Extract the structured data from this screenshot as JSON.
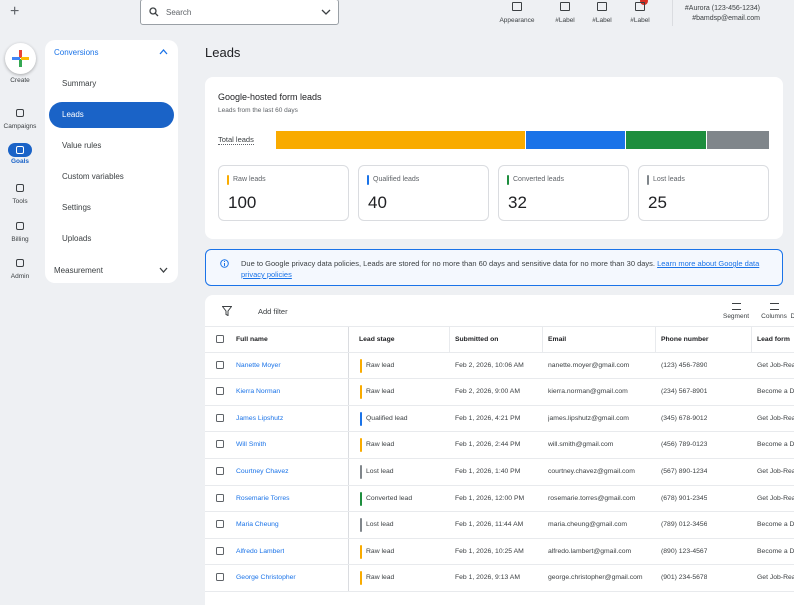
{
  "topbar": {
    "search_placeholder": "Search",
    "actions": [
      "Appearance",
      "#Label",
      "#Label",
      "#Label"
    ],
    "account_name": "#Aurora (123-456-1234)",
    "account_email": "#bamdsp@email.com"
  },
  "rail": {
    "create": "Create",
    "items": [
      "Campaigns",
      "Goals",
      "Tools",
      "Billing",
      "Admin"
    ],
    "active": 1
  },
  "subnav": {
    "section": "Conversions",
    "items": [
      "Summary",
      "Leads",
      "Value rules",
      "Custom variables",
      "Settings",
      "Uploads"
    ],
    "active": 1,
    "footer": "Measurement"
  },
  "page_title": "Leads",
  "summary": {
    "title": "Google-hosted form leads",
    "subtitle": "Leads from the last 60 days",
    "bar_label": "Total leads",
    "stats": [
      {
        "label": "Raw leads",
        "value": 100,
        "color": "#f9ab00"
      },
      {
        "label": "Qualified leads",
        "value": 40,
        "color": "#1a73e8"
      },
      {
        "label": "Converted leads",
        "value": 32,
        "color": "#1e8e3e"
      },
      {
        "label": "Lost leads",
        "value": 25,
        "color": "#80868b"
      }
    ]
  },
  "notice": {
    "text": "Due to Google privacy data policies, Leads are stored for no more than 60 days and sensitive data for no more than 30 days.",
    "link": "Learn more about Google data privacy policies"
  },
  "toolbar": {
    "filter": "Add filter",
    "actions": [
      "Segment",
      "Columns",
      "Download"
    ]
  },
  "table": {
    "columns": [
      "Full name",
      "Lead stage",
      "Submitted on",
      "Email",
      "Phone number",
      "Lead form"
    ],
    "stage_colors": {
      "Raw lead": "#f9ab00",
      "Qualified lead": "#1a73e8",
      "Converted lead": "#1e8e3e",
      "Lost lead": "#80868b"
    },
    "rows": [
      [
        "Nanette Moyer",
        "Raw lead",
        "Feb 2, 2026, 10:06 AM",
        "nanette.moyer@gmail.com",
        "(123) 456-7890",
        "Get Job-Rea"
      ],
      [
        "Kierra Norman",
        "Raw lead",
        "Feb 2, 2026, 9:00 AM",
        "kierra.norman@gmail.com",
        "(234) 567-8901",
        "Become a D"
      ],
      [
        "James Lipshutz",
        "Qualified lead",
        "Feb 1, 2026, 4:21 PM",
        "james.lipshutz@gmail.com",
        "(345) 678-9012",
        "Get Job-Rea"
      ],
      [
        "Will Smith",
        "Raw lead",
        "Feb 1, 2026, 2:44 PM",
        "will.smith@gmail.com",
        "(456) 789-0123",
        "Become a D"
      ],
      [
        "Courtney Chavez",
        "Lost lead",
        "Feb 1, 2026, 1:40 PM",
        "courtney.chavez@gmail.com",
        "(567) 890-1234",
        "Get Job-Rea"
      ],
      [
        "Rosemarie Torres",
        "Converted lead",
        "Feb 1, 2026, 12:00 PM",
        "rosemarie.torres@gmail.com",
        "(678) 901-2345",
        "Get Job-Rea"
      ],
      [
        "Maria Cheung",
        "Lost lead",
        "Feb 1, 2026, 11:44 AM",
        "maria.cheung@gmail.com",
        "(789) 012-3456",
        "Become a D"
      ],
      [
        "Alfredo Lambert",
        "Raw lead",
        "Feb 1, 2026, 10:25 AM",
        "alfredo.lambert@gmail.com",
        "(890) 123-4567",
        "Become a D"
      ],
      [
        "George Christopher",
        "Raw lead",
        "Feb 1, 2026, 9:13 AM",
        "george.christopher@gmail.com",
        "(901) 234-5678",
        "Get Job-Rea"
      ]
    ]
  }
}
